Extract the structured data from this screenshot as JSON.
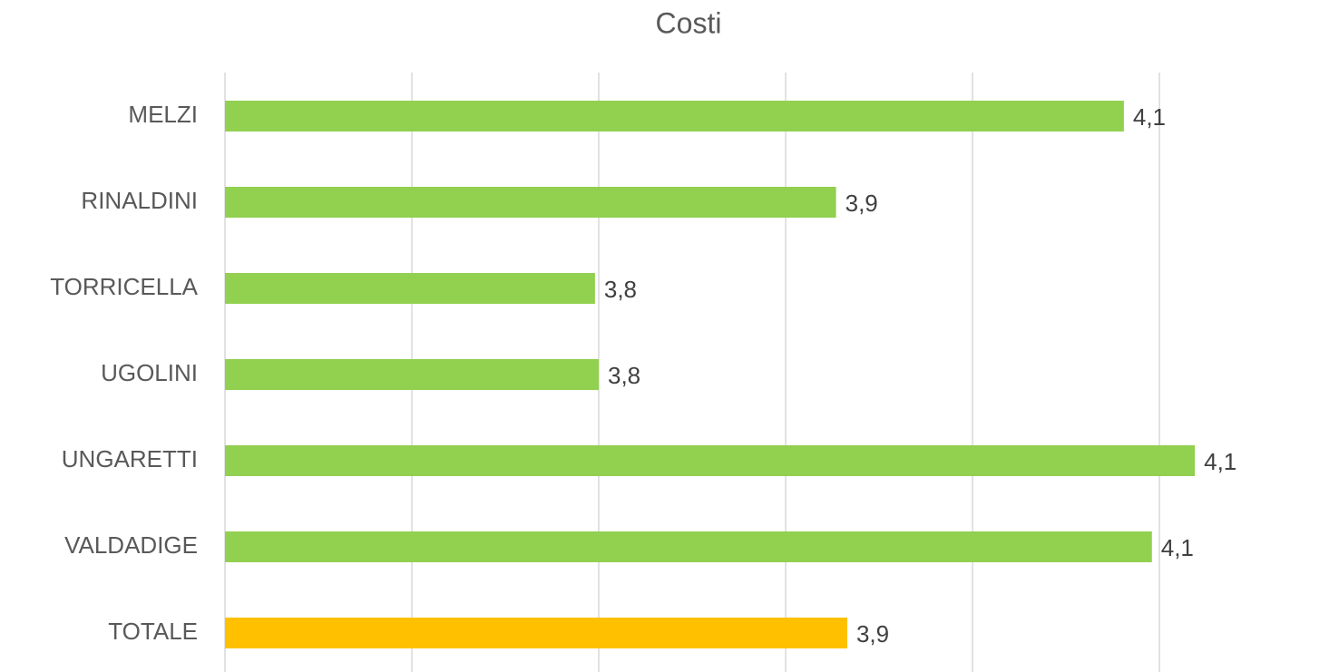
{
  "chart_data": {
    "type": "bar",
    "orientation": "horizontal",
    "title": "Costi",
    "categories": [
      "MELZI",
      "RINALDINI",
      "TORRICELLA",
      "UGOLINI",
      "UNGARETTI",
      "VALDADIGE",
      "TOTALE"
    ],
    "values": [
      4.081,
      3.927,
      3.798,
      3.8,
      4.119,
      4.096,
      3.933
    ],
    "value_labels": [
      "4,1",
      "3,9",
      "3,8",
      "3,8",
      "4,1",
      "4,1",
      "3,9"
    ],
    "colors": [
      "#92d050",
      "#92d050",
      "#92d050",
      "#92d050",
      "#92d050",
      "#92d050",
      "#ffc000"
    ],
    "xlim": [
      3.6,
      4.2
    ],
    "xticks": [
      3.6,
      3.7,
      3.8,
      3.9,
      4.0,
      4.1
    ],
    "grid": true
  }
}
